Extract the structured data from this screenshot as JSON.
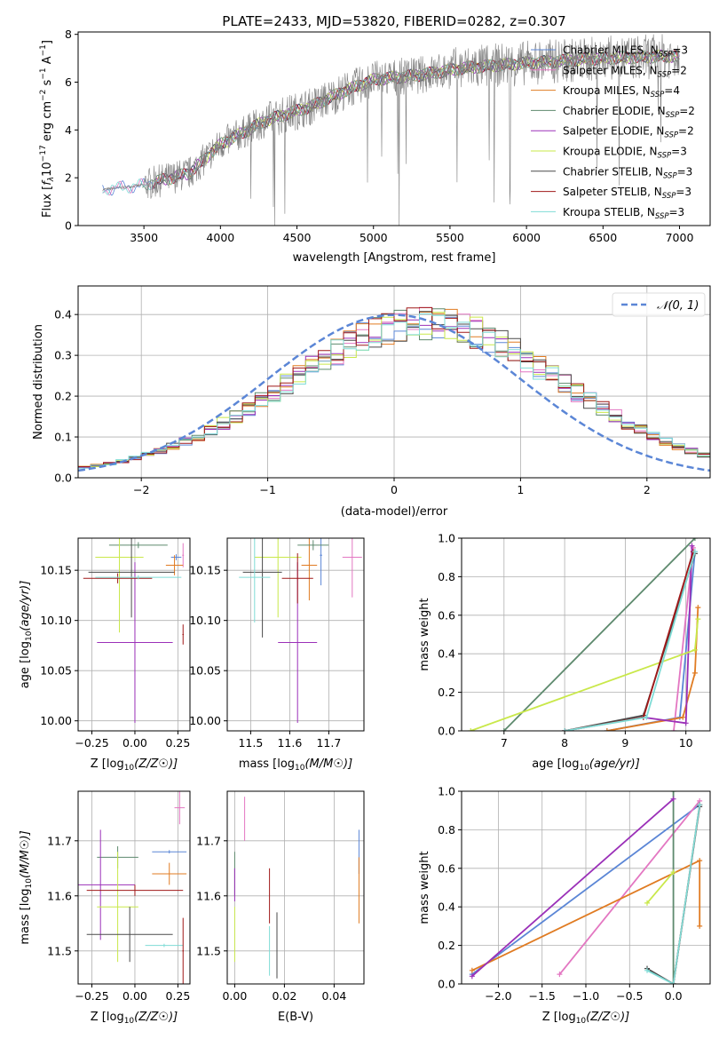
{
  "figure": {
    "title": "PLATE=2433, MJD=53820, FIBERID=0282, z=0.307"
  },
  "chart_data": [
    {
      "id": "spectrum",
      "type": "line",
      "xlabel": "wavelength [Angstrom, rest frame]",
      "ylabel": "Flux [f_λ10^-17 erg cm^-2 s^-1 A^-1]",
      "xlim": [
        3070,
        7200
      ],
      "ylim": [
        0,
        8.1
      ],
      "xticks": [
        3500,
        4000,
        4500,
        5000,
        5500,
        6000,
        6500,
        7000
      ],
      "yticks": [
        0,
        2,
        4,
        6,
        8
      ],
      "grid": false,
      "legend_position": "top-right",
      "data_line": {
        "color": "#808080",
        "x_start": 3230,
        "x_end": 7000
      },
      "model_trend": [
        [
          3230,
          1.5
        ],
        [
          3500,
          1.7
        ],
        [
          3800,
          2.2
        ],
        [
          4000,
          3.4
        ],
        [
          4300,
          4.4
        ],
        [
          4600,
          5.0
        ],
        [
          4800,
          5.6
        ],
        [
          5000,
          6.1
        ],
        [
          5300,
          6.3
        ],
        [
          5600,
          6.6
        ],
        [
          6000,
          6.8
        ],
        [
          6500,
          7.0
        ],
        [
          7000,
          7.1
        ]
      ],
      "series": [
        {
          "name": "Chabrier MILES, N_SSP=3",
          "label_main": "Chabrier MILES, N",
          "label_sub": "SSP",
          "label_tail": "=3",
          "color": "#5b86d6"
        },
        {
          "name": "Salpeter MILES, N_SSP=2",
          "label_main": "Salpeter MILES, N",
          "label_sub": "SSP",
          "label_tail": "=2",
          "color": "#e377c2"
        },
        {
          "name": "Kroupa MILES, N_SSP=4",
          "label_main": "Kroupa MILES, N",
          "label_sub": "SSP",
          "label_tail": "=4",
          "color": "#e07b22"
        },
        {
          "name": "Chabrier ELODIE, N_SSP=2",
          "label_main": "Chabrier ELODIE, N",
          "label_sub": "SSP",
          "label_tail": "=2",
          "color": "#5e8a6e"
        },
        {
          "name": "Salpeter ELODIE, N_SSP=2",
          "label_main": "Salpeter ELODIE, N",
          "label_sub": "SSP",
          "label_tail": "=2",
          "color": "#9b30b8"
        },
        {
          "name": "Kroupa ELODIE, N_SSP=3",
          "label_main": "Kroupa ELODIE, N",
          "label_sub": "SSP",
          "label_tail": "=3",
          "color": "#c9e84a"
        },
        {
          "name": "Chabrier STELIB, N_SSP=3",
          "label_main": "Chabrier STELIB, N",
          "label_sub": "SSP",
          "label_tail": "=3",
          "color": "#4a4a4a"
        },
        {
          "name": "Salpeter STELIB, N_SSP=3",
          "label_main": "Salpeter STELIB, N",
          "label_sub": "SSP",
          "label_tail": "=3",
          "color": "#a01818"
        },
        {
          "name": "Kroupa STELIB, N_SSP=3",
          "label_main": "Kroupa STELIB, N",
          "label_sub": "SSP",
          "label_tail": "=3",
          "color": "#7fdcd6"
        }
      ]
    },
    {
      "id": "residuals",
      "type": "line",
      "xlabel": "(data-model)/error",
      "ylabel": "Normed distribution",
      "xlim": [
        -2.5,
        2.5
      ],
      "ylim": [
        0,
        0.47
      ],
      "xticks": [
        -2,
        -1,
        0,
        1,
        2
      ],
      "yticks": [
        0.0,
        0.1,
        0.2,
        0.3,
        0.4
      ],
      "grid": true,
      "legend_position": "top-right",
      "legend_label": "𝒩(0, 1)",
      "normal_curve": {
        "mean": 0,
        "sigma": 1,
        "color": "#5b86d6"
      },
      "histogram": {
        "bin_width": 0.1,
        "shift_mean": 0.25,
        "sigma": 1.08
      }
    },
    {
      "id": "age_vs_Z",
      "type": "scatter",
      "xlabel_main": "Z [log",
      "xlabel_sub": "10",
      "xlabel_tail": "(Z/Z☉)]",
      "ylabel_main": "age  [log",
      "ylabel_sub": "10",
      "ylabel_tail": "(age/yr)]",
      "xlim": [
        -0.33,
        0.32
      ],
      "ylim": [
        9.99,
        10.182
      ],
      "xticks": [
        "-0.25",
        "0.00",
        "0.25"
      ],
      "xtick_values": [
        -0.25,
        0.0,
        0.25
      ],
      "yticks": [
        "10.00",
        "10.05",
        "10.10",
        "10.15"
      ],
      "ytick_values": [
        10.0,
        10.05,
        10.1,
        10.15
      ],
      "grid": true,
      "points": [
        {
          "x": 0.24,
          "y": 10.163,
          "xerr": 0.03,
          "yerr": 0.003,
          "c": 0
        },
        {
          "x": 0.28,
          "y": 10.165,
          "xerr": 0.005,
          "yerr": 0.012,
          "c": 1
        },
        {
          "x": 0.23,
          "y": 10.155,
          "xerr": 0.05,
          "yerr": 0.01,
          "c": 2
        },
        {
          "x": 0.02,
          "y": 10.175,
          "xerr": 0.17,
          "yerr": 0.003,
          "c": 3
        },
        {
          "x": 0.0,
          "y": 10.078,
          "xerr": 0.22,
          "yerr": 0.08,
          "c": 4
        },
        {
          "x": -0.09,
          "y": 10.163,
          "xerr": 0.14,
          "yerr": 0.075,
          "c": 5
        },
        {
          "x": -0.02,
          "y": 10.148,
          "xerr": 0.25,
          "yerr": 0.045,
          "c": 6
        },
        {
          "x": -0.1,
          "y": 10.142,
          "xerr": 0.2,
          "yerr": 0.005,
          "c": 7
        },
        {
          "x": 0.02,
          "y": 10.143,
          "xerr": 0.25,
          "yerr": 0.002,
          "c": 8
        },
        {
          "x": 0.28,
          "y": 10.086,
          "xerr": 0.004,
          "yerr": 0.01,
          "c": 7
        }
      ]
    },
    {
      "id": "age_vs_mass",
      "type": "scatter",
      "xlabel_main": "mass [log",
      "xlabel_sub": "10",
      "xlabel_tail": "(M/M☉)]",
      "xlim": [
        11.44,
        11.79
      ],
      "ylim": [
        9.99,
        10.182
      ],
      "xticks": [
        "11.5",
        "11.6",
        "11.7"
      ],
      "xtick_values": [
        11.5,
        11.6,
        11.7
      ],
      "yticks": [
        "10.00",
        "10.05",
        "10.10",
        "10.15"
      ],
      "ytick_values": [
        10.0,
        10.05,
        10.1,
        10.15
      ],
      "grid": true,
      "points": [
        {
          "x": 11.68,
          "y": 10.165,
          "xerr": 0.003,
          "yerr": 0.03,
          "c": 0
        },
        {
          "x": 11.76,
          "y": 10.163,
          "xerr": 0.025,
          "yerr": 0.04,
          "c": 1
        },
        {
          "x": 11.65,
          "y": 10.155,
          "xerr": 0.02,
          "yerr": 0.035,
          "c": 2
        },
        {
          "x": 11.66,
          "y": 10.175,
          "xerr": 0.04,
          "yerr": 0.005,
          "c": 3
        },
        {
          "x": 11.62,
          "y": 10.078,
          "xerr": 0.05,
          "yerr": 0.08,
          "c": 4
        },
        {
          "x": 11.57,
          "y": 10.163,
          "xerr": 0.06,
          "yerr": 0.06,
          "c": 5
        },
        {
          "x": 11.53,
          "y": 10.148,
          "xerr": 0.05,
          "yerr": 0.065,
          "c": 6
        },
        {
          "x": 11.62,
          "y": 10.142,
          "xerr": 0.04,
          "yerr": 0.025,
          "c": 7
        },
        {
          "x": 11.51,
          "y": 10.143,
          "xerr": 0.04,
          "yerr": 0.045,
          "c": 8
        }
      ]
    },
    {
      "id": "massweight_vs_age",
      "type": "line",
      "xlabel_main": "age  [log",
      "xlabel_sub": "10",
      "xlabel_tail": "(age/yr)]",
      "ylabel": "mass weight",
      "xlim": [
        6.3,
        10.4
      ],
      "ylim": [
        0,
        1.0
      ],
      "xticks": [
        "7",
        "8",
        "9",
        "10"
      ],
      "xtick_values": [
        7,
        8,
        9,
        10
      ],
      "yticks": [
        "0.0",
        "0.2",
        "0.4",
        "0.6",
        "0.8",
        "1.0"
      ],
      "ytick_values": [
        0,
        0.2,
        0.4,
        0.6,
        0.8,
        1.0
      ],
      "grid": true,
      "lines": [
        {
          "c": 0,
          "pts": [
            [
              8.7,
              0.0
            ],
            [
              9.9,
              0.07
            ],
            [
              10.15,
              0.93
            ]
          ]
        },
        {
          "c": 1,
          "pts": [
            [
              9.8,
              0.0
            ],
            [
              10.12,
              0.95
            ]
          ]
        },
        {
          "c": 2,
          "pts": [
            [
              8.7,
              0.0
            ],
            [
              9.95,
              0.07
            ],
            [
              10.15,
              0.3
            ],
            [
              10.2,
              0.64
            ]
          ]
        },
        {
          "c": 3,
          "pts": [
            [
              7.0,
              0.0
            ],
            [
              10.15,
              1.0
            ]
          ]
        },
        {
          "c": 4,
          "pts": [
            [
              8.0,
              0.0
            ],
            [
              9.3,
              0.07
            ],
            [
              10.0,
              0.04
            ],
            [
              10.1,
              0.96
            ]
          ]
        },
        {
          "c": 5,
          "pts": [
            [
              6.45,
              0.0
            ],
            [
              10.15,
              0.42
            ],
            [
              10.2,
              0.58
            ]
          ]
        },
        {
          "c": 6,
          "pts": [
            [
              8.0,
              0.0
            ],
            [
              9.3,
              0.08
            ],
            [
              10.15,
              0.92
            ]
          ]
        },
        {
          "c": 7,
          "pts": [
            [
              8.0,
              0.0
            ],
            [
              9.3,
              0.07
            ],
            [
              10.12,
              0.93
            ]
          ]
        },
        {
          "c": 8,
          "pts": [
            [
              8.0,
              0.0
            ],
            [
              9.35,
              0.07
            ],
            [
              10.15,
              0.93
            ]
          ]
        }
      ]
    },
    {
      "id": "mass_vs_Z",
      "type": "scatter",
      "xlabel_main": "Z [log",
      "xlabel_sub": "10",
      "xlabel_tail": "(Z/Z☉)]",
      "ylabel_main": "mass [log",
      "ylabel_sub": "10",
      "ylabel_tail": "(M/M☉)]",
      "xlim": [
        -0.33,
        0.32
      ],
      "ylim": [
        11.44,
        11.79
      ],
      "xticks": [
        "-0.25",
        "0.00",
        "0.25"
      ],
      "xtick_values": [
        -0.25,
        0.0,
        0.25
      ],
      "yticks": [
        "11.5",
        "11.6",
        "11.7"
      ],
      "ytick_values": [
        11.5,
        11.6,
        11.7
      ],
      "grid": true,
      "points": [
        {
          "x": 0.2,
          "y": 11.68,
          "xerr": 0.1,
          "yerr": 0.003,
          "c": 0
        },
        {
          "x": 0.26,
          "y": 11.76,
          "xerr": 0.03,
          "yerr": 0.03,
          "c": 1
        },
        {
          "x": 0.2,
          "y": 11.64,
          "xerr": 0.1,
          "yerr": 0.02,
          "c": 2
        },
        {
          "x": -0.1,
          "y": 11.67,
          "xerr": 0.12,
          "yerr": 0.02,
          "c": 3
        },
        {
          "x": -0.2,
          "y": 11.62,
          "xerr": 0.2,
          "yerr": 0.1,
          "c": 4
        },
        {
          "x": -0.1,
          "y": 11.58,
          "xerr": 0.12,
          "yerr": 0.1,
          "c": 5
        },
        {
          "x": -0.03,
          "y": 11.53,
          "xerr": 0.25,
          "yerr": 0.05,
          "c": 6
        },
        {
          "x": 0.0,
          "y": 11.61,
          "xerr": 0.28,
          "yerr": 0.01,
          "c": 7
        },
        {
          "x": 0.17,
          "y": 11.51,
          "xerr": 0.11,
          "yerr": 0.003,
          "c": 8
        },
        {
          "x": 0.28,
          "y": 11.5,
          "xerr": 0.004,
          "yerr": 0.06,
          "c": 7
        }
      ]
    },
    {
      "id": "mass_vs_EBV",
      "type": "scatter",
      "xlabel": "E(B-V)",
      "xlim": [
        -0.003,
        0.052
      ],
      "ylim": [
        11.44,
        11.79
      ],
      "xticks": [
        "0.00",
        "0.02",
        "0.04"
      ],
      "xtick_values": [
        0.0,
        0.02,
        0.04
      ],
      "yticks": [
        "11.5",
        "11.6",
        "11.7"
      ],
      "ytick_values": [
        11.5,
        11.6,
        11.7
      ],
      "grid": true,
      "points": [
        {
          "x": 0.05,
          "y": 11.68,
          "xerr": 0.0,
          "yerr": 0.04,
          "c": 0
        },
        {
          "x": 0.004,
          "y": 11.74,
          "xerr": 0.0,
          "yerr": 0.04,
          "c": 1
        },
        {
          "x": 0.05,
          "y": 11.61,
          "xerr": 0.0,
          "yerr": 0.06,
          "c": 2
        },
        {
          "x": 0.0,
          "y": 11.64,
          "xerr": 0.0,
          "yerr": 0.04,
          "c": 3
        },
        {
          "x": 0.0,
          "y": 11.62,
          "xerr": 0.0,
          "yerr": 0.03,
          "c": 4
        },
        {
          "x": 0.0,
          "y": 11.53,
          "xerr": 0.0,
          "yerr": 0.05,
          "c": 5
        },
        {
          "x": 0.017,
          "y": 11.51,
          "xerr": 0.0,
          "yerr": 0.06,
          "c": 6
        },
        {
          "x": 0.014,
          "y": 11.6,
          "xerr": 0.0,
          "yerr": 0.05,
          "c": 7
        },
        {
          "x": 0.014,
          "y": 11.5,
          "xerr": 0.0,
          "yerr": 0.045,
          "c": 8
        }
      ]
    },
    {
      "id": "massweight_vs_Z",
      "type": "line",
      "xlabel_main": "Z [log",
      "xlabel_sub": "10",
      "xlabel_tail": "(Z/Z☉)]",
      "ylabel": "mass weight",
      "xlim": [
        -2.42,
        0.42
      ],
      "ylim": [
        0,
        1.0
      ],
      "xticks": [
        "-2.0",
        "-1.5",
        "-1.0",
        "-0.5",
        "0.0"
      ],
      "xtick_values": [
        -2.0,
        -1.5,
        -1.0,
        -0.5,
        0.0
      ],
      "yticks": [
        "0.0",
        "0.2",
        "0.4",
        "0.6",
        "0.8",
        "1.0"
      ],
      "ytick_values": [
        0,
        0.2,
        0.4,
        0.6,
        0.8,
        1.0
      ],
      "grid": true,
      "lines": [
        {
          "c": 0,
          "pts": [
            [
              -2.3,
              0.05
            ],
            [
              0.3,
              0.93
            ]
          ]
        },
        {
          "c": 1,
          "pts": [
            [
              -1.3,
              0.05
            ],
            [
              0.3,
              0.95
            ]
          ]
        },
        {
          "c": 2,
          "pts": [
            [
              -2.3,
              0.07
            ],
            [
              0.3,
              0.64
            ],
            [
              0.3,
              0.3
            ]
          ]
        },
        {
          "c": 3,
          "pts": [
            [
              0.0,
              0.0
            ],
            [
              0.0,
              1.0
            ]
          ]
        },
        {
          "c": 4,
          "pts": [
            [
              -2.3,
              0.04
            ],
            [
              0.0,
              0.96
            ]
          ]
        },
        {
          "c": 5,
          "pts": [
            [
              -0.3,
              0.42
            ],
            [
              0.0,
              0.58
            ]
          ]
        },
        {
          "c": 6,
          "pts": [
            [
              -0.3,
              0.08
            ],
            [
              0.0,
              0.0
            ],
            [
              0.3,
              0.92
            ]
          ]
        },
        {
          "c": 7,
          "pts": [
            [
              0.0,
              0.0
            ],
            [
              0.3,
              0.93
            ]
          ]
        },
        {
          "c": 8,
          "pts": [
            [
              -0.3,
              0.07
            ],
            [
              0.0,
              0.0
            ],
            [
              0.3,
              0.93
            ]
          ]
        }
      ]
    }
  ]
}
